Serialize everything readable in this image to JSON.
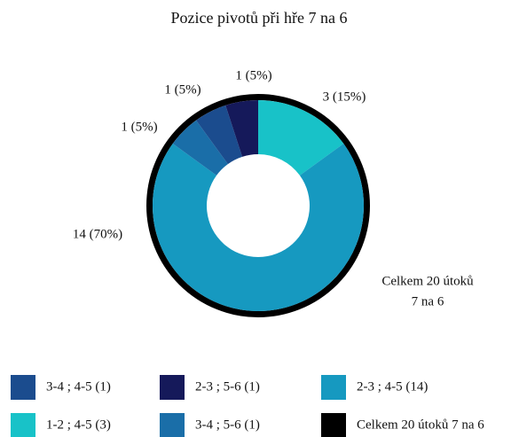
{
  "chart_data": {
    "type": "donut",
    "title": "Pozice pivotů při hře 7 na 6",
    "categories": [
      "1-2 ; 4-5 (3)",
      "2-3 ; 4-5 (14)",
      "3-4 ; 5-6 (1)",
      "3-4 ; 4-5 (1)",
      "2-3 ; 5-6 (1)"
    ],
    "values": [
      3,
      14,
      1,
      1,
      1
    ],
    "value_labels": [
      "3 (15%)",
      "14 (70%)",
      "1 (5%)",
      "1 (5%)",
      "1 (5%)"
    ],
    "colors": [
      "#18c2c8",
      "#1699c0",
      "#1a6ea8",
      "#1b4c8e",
      "#15195a"
    ],
    "ring": {
      "name": "Celkem 20 útoků 7 na 6",
      "color": "#000000"
    },
    "annotation": [
      "Celkem 20 útoků",
      "7 na 6"
    ]
  }
}
